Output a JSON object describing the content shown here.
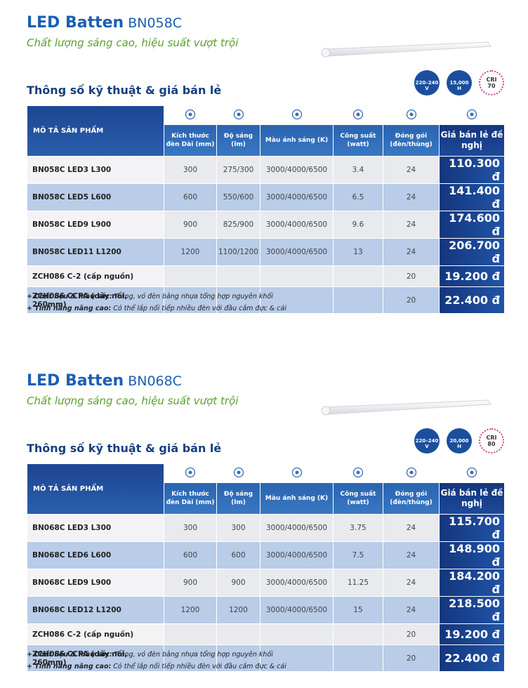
{
  "sections": [
    {
      "title": "LED Batten",
      "model": "BN058C",
      "subtitle": "Chất lượng sáng cao, hiệu suất vượt trội",
      "heading": "Thông số kỹ thuật & giá bán lẻ",
      "badges": {
        "voltage": "220–240",
        "voltage_unit": "V",
        "life": "15,000",
        "life_unit": "H",
        "cri_label": "CRI",
        "cri": "70"
      },
      "table": {
        "headers": [
          "MÔ TẢ SẢN PHẨM",
          "Kích thước đèn Dài (mm)",
          "Độ sáng (lm)",
          "Màu ánh sáng (K)",
          "Công suất (watt)",
          "Đóng gói (đèn/thùng)",
          "Giá bán lẻ đề nghị"
        ],
        "rows": [
          {
            "name": "BN058C LED3 L300",
            "size": "300",
            "lumen": "275/300",
            "cct": "3000/4000/6500",
            "watt": "3.4",
            "pack": "24",
            "price": "110.300 đ"
          },
          {
            "name": "BN058C LED5 L600",
            "size": "600",
            "lumen": "550/600",
            "cct": "3000/4000/6500",
            "watt": "6.5",
            "pack": "24",
            "price": "141.400 đ"
          },
          {
            "name": "BN058C LED9 L900",
            "size": "900",
            "lumen": "825/900",
            "cct": "3000/4000/6500",
            "watt": "9.6",
            "pack": "24",
            "price": "174.600 đ"
          },
          {
            "name": "BN058C LED11 L1200",
            "size": "1200",
            "lumen": "1100/1200",
            "cct": "3000/4000/6500",
            "watt": "13",
            "pack": "24",
            "price": "206.700 đ"
          },
          {
            "name": "ZCH086 C-2 (cấp nguồn)",
            "pack": "20",
            "price": "19.200 đ"
          },
          {
            "name": "ZCH086 CCPA (dây nối, 260mm)",
            "pack": "20",
            "price": "22.400 đ"
          }
        ]
      },
      "notes": [
        {
          "label": "+ Chất liệu & màu sắc:",
          "text": "Trắng, vỏ đèn bằng nhựa tổng hợp nguyên khối"
        },
        {
          "label": "+ Tính năng nâng cao:",
          "text": "Có thể lắp nối tiếp nhiều đèn với đầu cắm đực & cái"
        }
      ]
    },
    {
      "title": "LED Batten",
      "model": "BN068C",
      "subtitle": "Chất lượng sáng cao, hiệu suất vượt trội",
      "heading": "Thông số kỹ thuật & giá bán lẻ",
      "badges": {
        "voltage": "220–240",
        "voltage_unit": "V",
        "life": "20,000",
        "life_unit": "H",
        "cri_label": "CRI",
        "cri": "80"
      },
      "table": {
        "headers": [
          "MÔ TẢ SẢN PHẨM",
          "Kích thước đèn Dài (mm)",
          "Độ sáng (lm)",
          "Màu ánh sáng (K)",
          "Công suất (watt)",
          "Đóng gói (đèn/thùng)",
          "Giá bán lẻ đề nghị"
        ],
        "rows": [
          {
            "name": "BN068C LED3 L300",
            "size": "300",
            "lumen": "300",
            "cct": "3000/4000/6500",
            "watt": "3.75",
            "pack": "24",
            "price": "115.700 đ"
          },
          {
            "name": "BN068C LED6 L600",
            "size": "600",
            "lumen": "600",
            "cct": "3000/4000/6500",
            "watt": "7.5",
            "pack": "24",
            "price": "148.900 đ"
          },
          {
            "name": "BN068C LED9 L900",
            "size": "900",
            "lumen": "900",
            "cct": "3000/4000/6500",
            "watt": "11.25",
            "pack": "24",
            "price": "184.200 đ"
          },
          {
            "name": "BN068C LED12 L1200",
            "size": "1200",
            "lumen": "1200",
            "cct": "3000/4000/6500",
            "watt": "15",
            "pack": "24",
            "price": "218.500 đ"
          },
          {
            "name": "ZCH086 C-2 (cấp nguồn)",
            "pack": "20",
            "price": "19.200 đ"
          },
          {
            "name": "ZCH086 CCPA (dây nối, 260mm)",
            "pack": "20",
            "price": "22.400 đ"
          }
        ]
      },
      "notes": [
        {
          "label": "+ Chất liệu & màu sắc:",
          "text": "Trắng, vỏ đèn bằng nhựa tổng hợp nguyên khối"
        },
        {
          "label": "+ Tính năng nâng cao:",
          "text": "Có thể lắp nối tiếp nhiều đèn với đầu cắm đực & cái"
        }
      ]
    }
  ]
}
